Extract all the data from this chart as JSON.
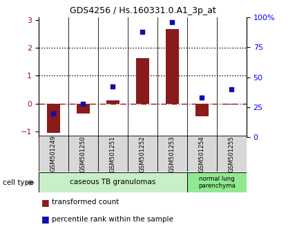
{
  "title": "GDS4256 / Hs.160331.0.A1_3p_at",
  "samples": [
    "GSM501249",
    "GSM501250",
    "GSM501251",
    "GSM501252",
    "GSM501253",
    "GSM501254",
    "GSM501255"
  ],
  "bar_values": [
    -1.05,
    -0.35,
    0.12,
    1.62,
    2.68,
    -0.45,
    -0.02
  ],
  "dot_values": [
    20,
    28,
    42,
    88,
    96,
    33,
    40
  ],
  "bar_color": "#8B1A1A",
  "dot_color": "#1010AA",
  "ylim_left": [
    -1.2,
    3.1
  ],
  "ylim_right": [
    0,
    100
  ],
  "yticks_left": [
    -1,
    0,
    1,
    2,
    3
  ],
  "yticks_right": [
    0,
    25,
    50,
    75,
    100
  ],
  "ytick_labels_right": [
    "0",
    "25",
    "50",
    "75",
    "100%"
  ],
  "group1_label": "caseous TB granulomas",
  "group2_label": "normal lung\nparenchyma",
  "group1_color": "#c8f0c8",
  "group2_color": "#90e890",
  "celltype_label": "cell type",
  "legend_bar": "transformed count",
  "legend_dot": "percentile rank within the sample",
  "sample_box_color": "#d8d8d8",
  "bg_color": "#ffffff"
}
